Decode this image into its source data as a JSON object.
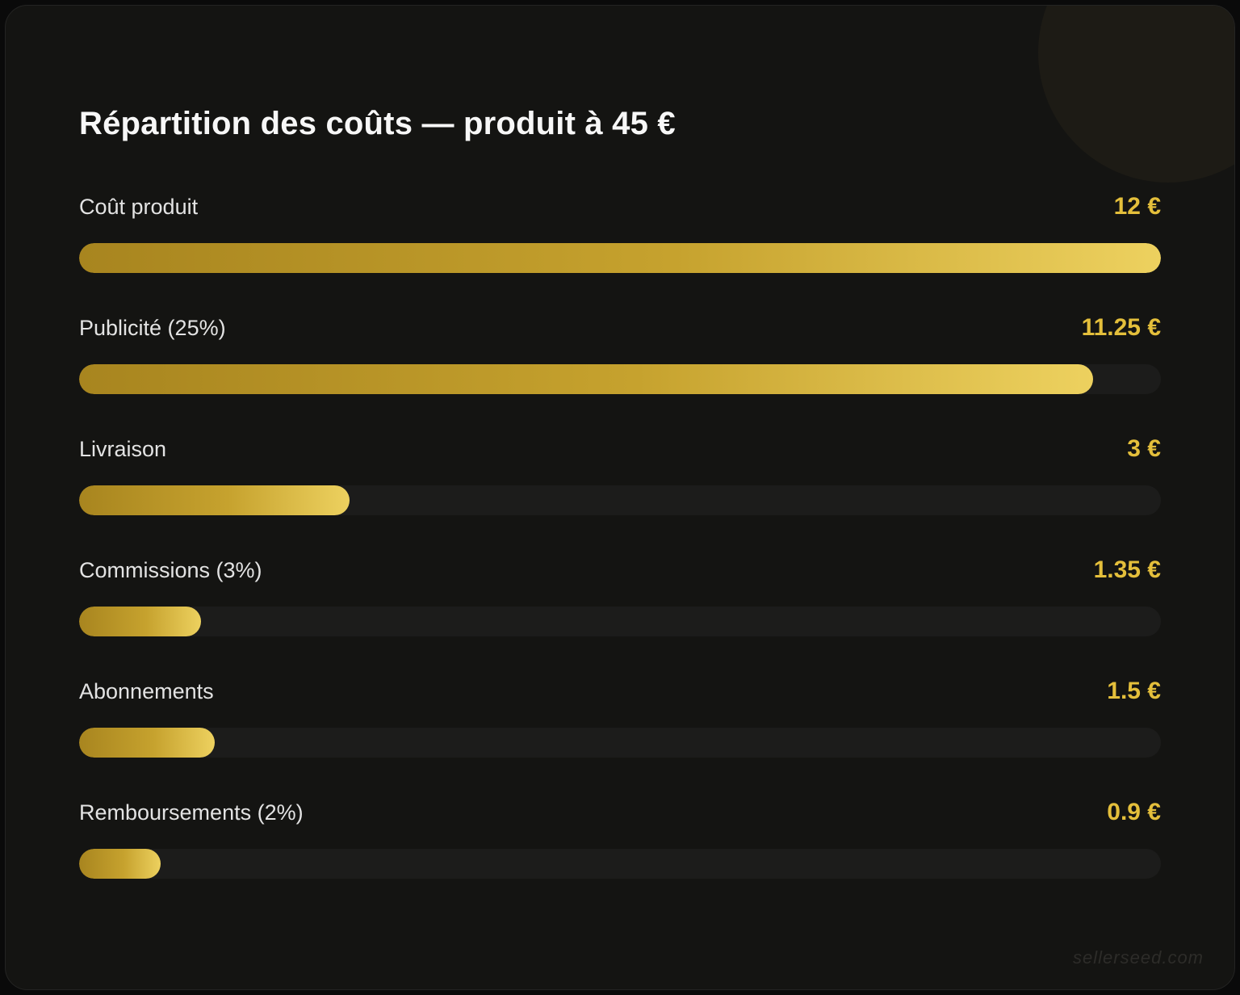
{
  "page": {
    "title": "Répartition des coûts — produit à 45 €",
    "watermark": "sellerseed.com"
  },
  "chart_data": {
    "type": "bar",
    "orientation": "horizontal",
    "title": "Répartition des coûts — produit à 45 €",
    "unit": "€",
    "xlim": [
      0,
      12
    ],
    "categories": [
      "Coût produit",
      "Publicité (25%)",
      "Livraison",
      "Commissions (3%)",
      "Abonnements",
      "Remboursements (2%)"
    ],
    "values": [
      12,
      11.25,
      3,
      1.35,
      1.5,
      0.9
    ],
    "value_labels": [
      "12 €",
      "11.25 €",
      "3 €",
      "1.35 €",
      "1.5 €",
      "0.9 €"
    ]
  },
  "colors": {
    "page_background": "#0a0a0a",
    "card_background": "#141412",
    "card_border": "#242423",
    "decorative_circle": "#1d1b15",
    "bar_track": "#1c1c1b",
    "bar_gradient_start": "#a8851f",
    "bar_gradient_end": "#edd15f",
    "value_text": "#e4bf3b",
    "label_text": "#e3e3e3",
    "title_text": "#f7f7f7",
    "watermark_text": "#2d2c29"
  }
}
